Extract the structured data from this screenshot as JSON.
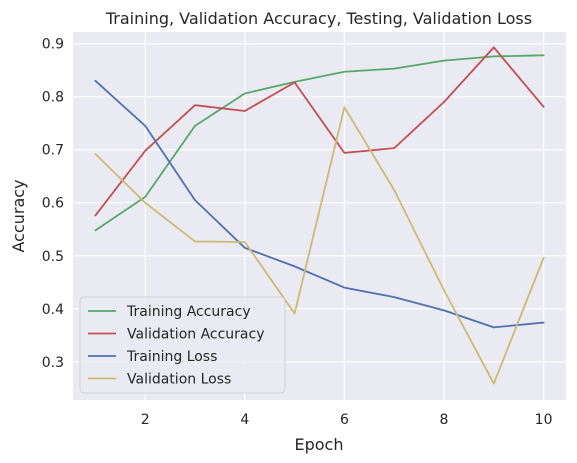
{
  "chart_data": {
    "type": "line",
    "title": "Training, Validation Accuracy, Testing, Validation Loss",
    "xlabel": "Epoch",
    "ylabel": "Accuracy",
    "x": [
      1,
      2,
      3,
      4,
      5,
      6,
      7,
      8,
      9,
      10
    ],
    "xlim": [
      0.55,
      10.45
    ],
    "ylim": [
      0.228,
      0.922
    ],
    "xticks": [
      2,
      4,
      6,
      8,
      10
    ],
    "yticks": [
      0.3,
      0.4,
      0.5,
      0.6,
      0.7,
      0.8,
      0.9
    ],
    "xtick_labels": [
      "2",
      "4",
      "6",
      "8",
      "10"
    ],
    "ytick_labels": [
      "0.3",
      "0.4",
      "0.5",
      "0.6",
      "0.7",
      "0.8",
      "0.9"
    ],
    "grid": true,
    "legend_position": "lower-left",
    "series": [
      {
        "name": "Training Accuracy",
        "color": "#55a868",
        "values": [
          0.548,
          0.611,
          0.745,
          0.806,
          0.828,
          0.847,
          0.853,
          0.868,
          0.876,
          0.878
        ]
      },
      {
        "name": "Validation Accuracy",
        "color": "#c44e52",
        "values": [
          0.576,
          0.698,
          0.784,
          0.773,
          0.827,
          0.694,
          0.703,
          0.79,
          0.893,
          0.781
        ]
      },
      {
        "name": "Training Loss",
        "color": "#4c72b0",
        "values": [
          0.83,
          0.745,
          0.605,
          0.515,
          0.48,
          0.44,
          0.422,
          0.397,
          0.365,
          0.374
        ]
      },
      {
        "name": "Validation Loss",
        "color": "#ccb974",
        "values": [
          0.692,
          0.6,
          0.527,
          0.526,
          0.391,
          0.78,
          0.624,
          0.435,
          0.259,
          0.496
        ]
      }
    ]
  }
}
